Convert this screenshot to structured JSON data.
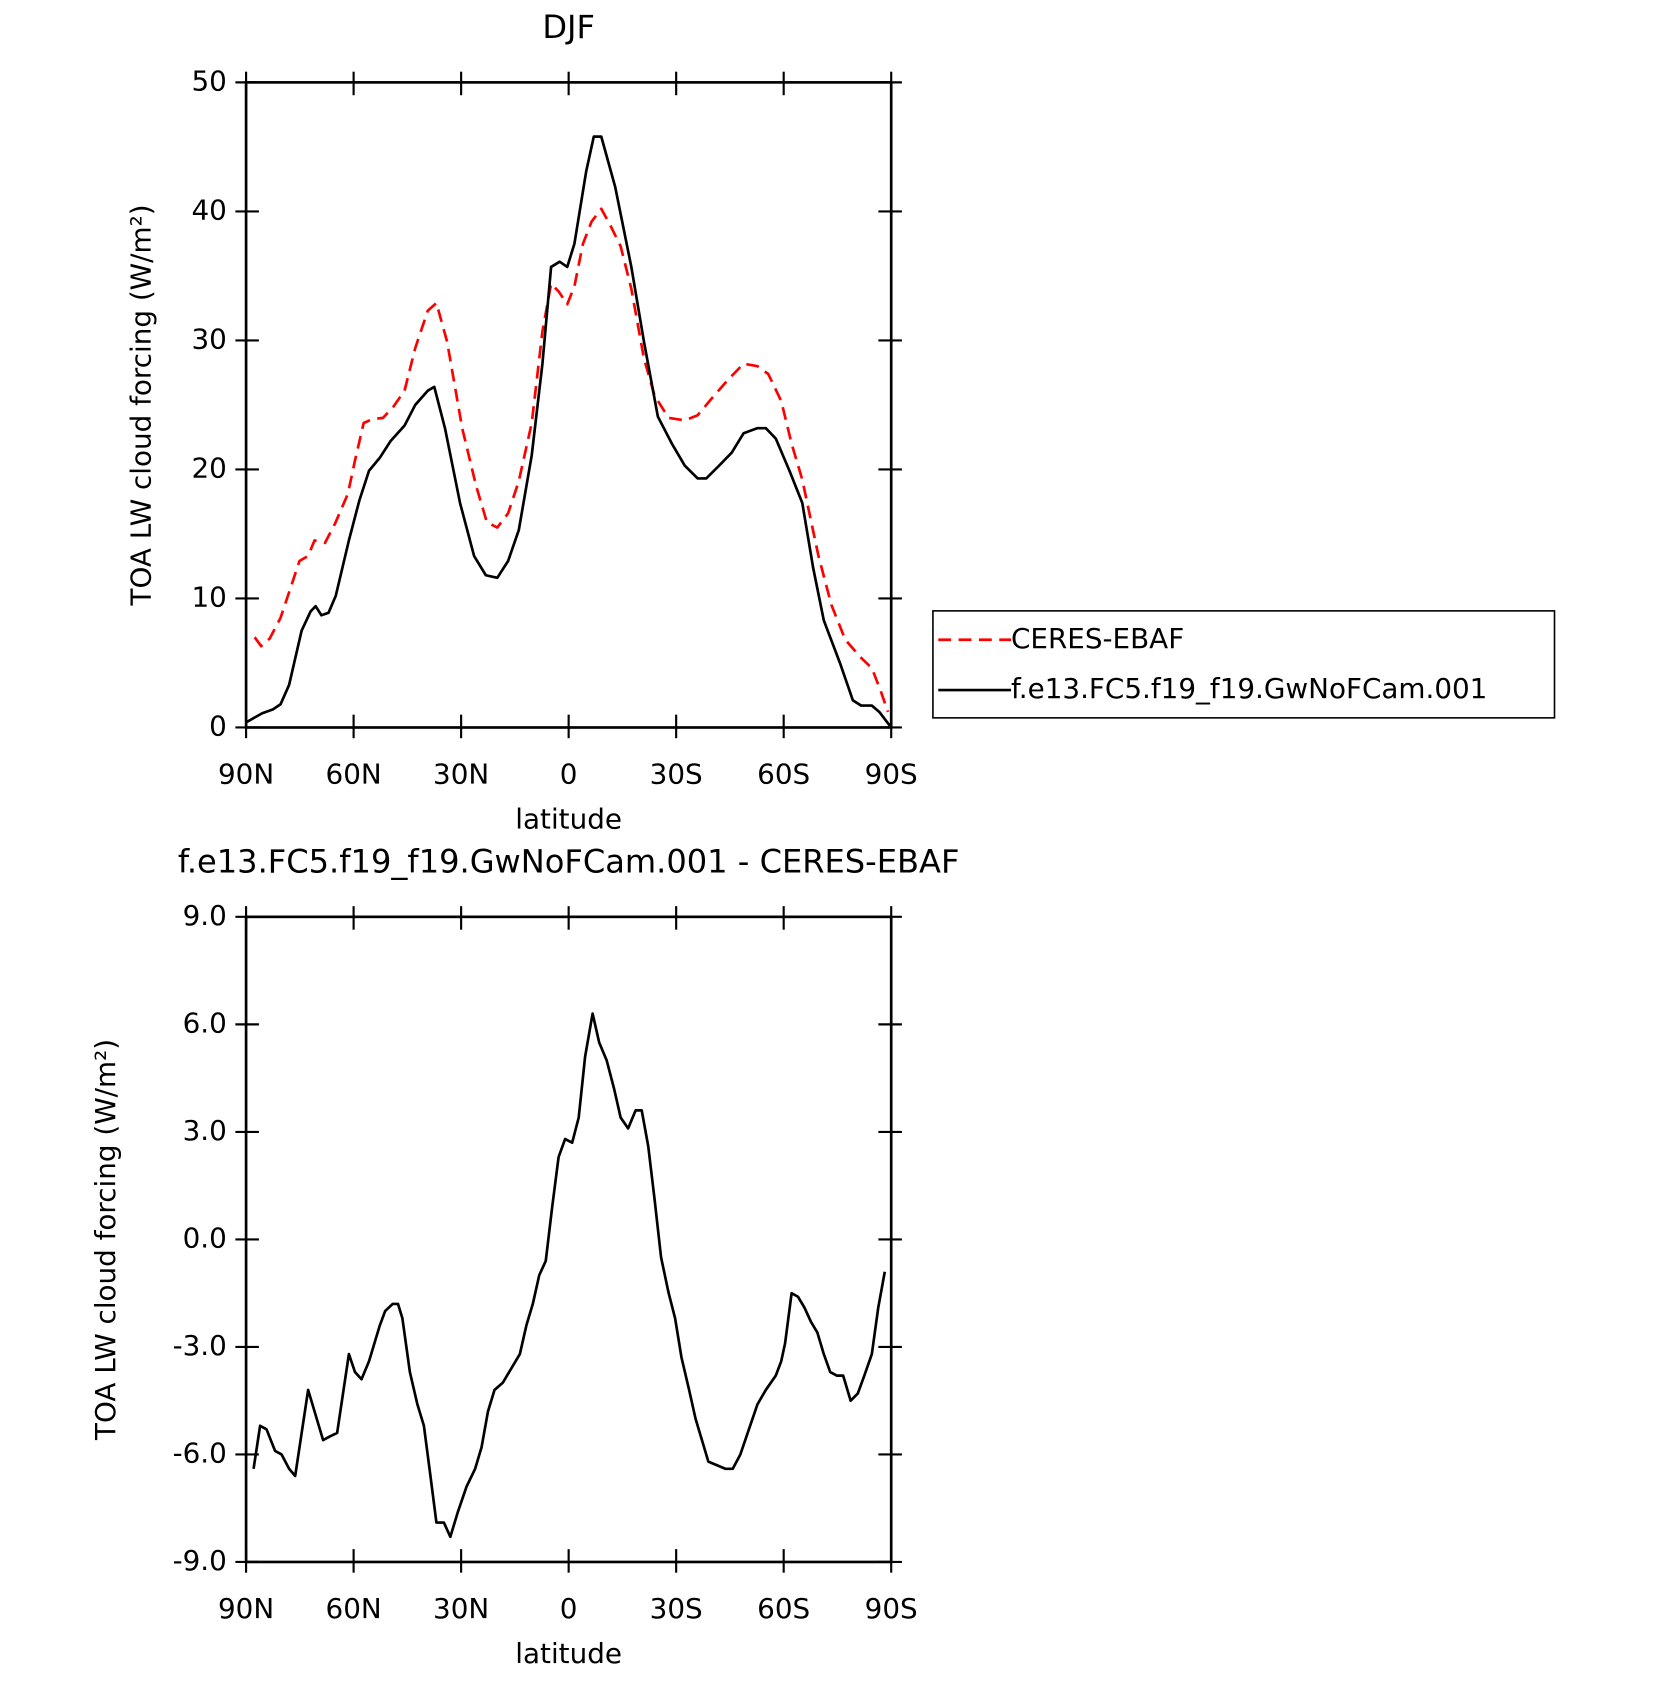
{
  "chart_data": [
    {
      "type": "line",
      "title": "DJF",
      "xlabel": "latitude",
      "ylabel": "TOA LW cloud forcing (W/m²)",
      "xlim": [
        90,
        -90
      ],
      "xticks": [
        {
          "value": 90,
          "label": "90N"
        },
        {
          "value": 60,
          "label": "60N"
        },
        {
          "value": 30,
          "label": "30N"
        },
        0,
        {
          "value": -30,
          "label": "30S"
        },
        {
          "value": -60,
          "label": "60S"
        },
        {
          "value": -90,
          "label": "90S"
        }
      ],
      "ylim": [
        0,
        50
      ],
      "yticks": [
        0,
        10,
        20,
        30,
        40,
        50
      ],
      "legend": "right",
      "series": [
        {
          "name": "CERES-EBAF",
          "color": "#ff0000",
          "line_style": "dashed",
          "x": [
            87.6,
            85.8,
            83.4,
            80.4,
            77.5,
            75.1,
            72.7,
            70.9,
            68,
            65.2,
            61.6,
            59.6,
            57.2,
            54.8,
            51.8,
            48.8,
            45.8,
            42.8,
            39.3,
            36.9,
            33.9,
            29.7,
            25.8,
            22.8,
            19.9,
            16.9,
            13.9,
            10.3,
            7.3,
            4.9,
            2.8,
            0.4,
            -1.6,
            -4,
            -6.4,
            -9.1,
            -11.5,
            -14.5,
            -17.5,
            -21,
            -24,
            -27.9,
            -32.4,
            -36,
            -39.9,
            -44.3,
            -48.8,
            -52.7,
            -55.7,
            -59.3,
            -62.2,
            -65.2,
            -69.7,
            -73.3,
            -77.2,
            -81.6,
            -84.6,
            -87,
            -89.1
          ],
          "values": [
            7,
            6.3,
            6.9,
            8.5,
            10.9,
            12.9,
            13.3,
            14.5,
            14.3,
            15.8,
            18.1,
            20.7,
            23.6,
            23.9,
            24,
            24.9,
            26.1,
            29.4,
            32.3,
            32.9,
            29.9,
            23.2,
            18.7,
            15.9,
            15.5,
            16.6,
            19.1,
            23.6,
            30.7,
            34.4,
            33.8,
            32.8,
            34.2,
            37.5,
            39.2,
            40.2,
            39,
            37.3,
            34,
            28.6,
            25.7,
            24,
            23.8,
            24.2,
            25.5,
            26.9,
            28.2,
            28,
            27.4,
            25.3,
            22,
            19.2,
            13.3,
            9.5,
            6.8,
            5.4,
            4.6,
            2.9,
            1.2
          ]
        },
        {
          "name": "f.e13.FC5.f19_f19.GwNoFCam.001",
          "color": "#000000",
          "line_style": "solid",
          "x": [
            90,
            85.5,
            82.5,
            80.4,
            78,
            74.5,
            72,
            70.6,
            69,
            67,
            65,
            61.3,
            58.4,
            55.7,
            52.7,
            49.7,
            45.8,
            42.8,
            39.3,
            37.5,
            34.5,
            30.3,
            26.4,
            23.1,
            19.9,
            16.9,
            13.9,
            10.3,
            7.3,
            4.9,
            2.5,
            0.4,
            -1.6,
            -4.9,
            -7,
            -9.1,
            -13,
            -17.5,
            -21,
            -24.9,
            -28.8,
            -32.4,
            -36,
            -38.4,
            -42,
            -45.5,
            -48.8,
            -52.7,
            -55,
            -57.8,
            -61.6,
            -65.2,
            -68.2,
            -71.2,
            -75.7,
            -79.3,
            -81.6,
            -84.6,
            -86.7,
            -90
          ],
          "values": [
            0.4,
            1.1,
            1.4,
            1.8,
            3.3,
            7.5,
            9,
            9.4,
            8.7,
            8.9,
            10.2,
            14.5,
            17.6,
            19.9,
            20.9,
            22.2,
            23.4,
            25,
            26.1,
            26.4,
            23.2,
            17.4,
            13.3,
            11.8,
            11.6,
            12.9,
            15.3,
            21.1,
            28.2,
            35.7,
            36.1,
            35.7,
            37.5,
            43.1,
            45.8,
            45.8,
            41.9,
            35.7,
            29.9,
            24.1,
            22,
            20.3,
            19.3,
            19.3,
            20.3,
            21.3,
            22.8,
            23.2,
            23.2,
            22.4,
            19.9,
            17.4,
            12.4,
            8.3,
            5,
            2.1,
            1.7,
            1.7,
            1.2,
            0
          ]
        }
      ]
    },
    {
      "type": "line",
      "title": "f.e13.FC5.f19_f19.GwNoFCam.001 - CERES-EBAF",
      "xlabel": "latitude",
      "ylabel": "TOA LW cloud forcing (W/m²)",
      "xlim": [
        90,
        -90
      ],
      "xticks": [
        {
          "value": 90,
          "label": "90N"
        },
        {
          "value": 60,
          "label": "60N"
        },
        {
          "value": 30,
          "label": "30N"
        },
        0,
        {
          "value": -30,
          "label": "30S"
        },
        {
          "value": -60,
          "label": "60S"
        },
        {
          "value": -90,
          "label": "90S"
        }
      ],
      "ylim": [
        -9,
        9
      ],
      "yticks": [
        {
          "value": -9,
          "label": "-9.0"
        },
        {
          "value": -6,
          "label": "-6.0"
        },
        {
          "value": -3,
          "label": "-3.0"
        },
        {
          "value": 0,
          "label": "0.0"
        },
        {
          "value": 3,
          "label": "3.0"
        },
        {
          "value": 6,
          "label": "6.0"
        },
        {
          "value": 9,
          "label": "9.0"
        }
      ],
      "color": "#000000",
      "line_style": "solid",
      "x": [
        87.9,
        86.1,
        84.3,
        81.9,
        80.1,
        78,
        76.3,
        72.7,
        70.3,
        68.5,
        66.7,
        64.6,
        61.3,
        59.6,
        57.8,
        55.7,
        52.7,
        51.2,
        49.1,
        47.6,
        46.4,
        44.3,
        42.2,
        40.4,
        38.7,
        36.9,
        34.8,
        33,
        30.9,
        28.5,
        26.1,
        24.3,
        22.5,
        20.7,
        18.4,
        16,
        13.6,
        11.8,
        10,
        8.2,
        6.4,
        4.6,
        2.8,
        1,
        -1,
        -2.8,
        -4.6,
        -6.7,
        -8.5,
        -10.6,
        -12.7,
        -14.5,
        -16.6,
        -18.7,
        -20.4,
        -22.2,
        -24,
        -25.8,
        -27.9,
        -29.7,
        -31.5,
        -33.6,
        -35.4,
        -37.2,
        -39,
        -41.3,
        -43.7,
        -45.8,
        -47.9,
        -50.3,
        -52.7,
        -55,
        -57.8,
        -59.3,
        -60.4,
        -62.2,
        -64,
        -65.8,
        -67.6,
        -69.4,
        -71.2,
        -73,
        -74.8,
        -76.6,
        -78.7,
        -80.7,
        -82.5,
        -84.6,
        -86.4,
        -88.2
      ],
      "values": [
        -6.4,
        -5.2,
        -5.3,
        -5.9,
        -6,
        -6.4,
        -6.6,
        -4.2,
        -5,
        -5.6,
        -5.5,
        -5.4,
        -3.2,
        -3.7,
        -3.9,
        -3.4,
        -2.4,
        -2,
        -1.8,
        -1.8,
        -2.2,
        -3.7,
        -4.6,
        -5.2,
        -6.5,
        -7.9,
        -7.9,
        -8.3,
        -7.6,
        -6.9,
        -6.4,
        -5.8,
        -4.8,
        -4.2,
        -4,
        -3.6,
        -3.2,
        -2.4,
        -1.8,
        -1,
        -0.6,
        0.9,
        2.3,
        2.8,
        2.7,
        3.4,
        5.1,
        6.3,
        5.5,
        5,
        4.2,
        3.4,
        3.1,
        3.6,
        3.6,
        2.6,
        1.1,
        -0.5,
        -1.5,
        -2.2,
        -3.3,
        -4.2,
        -5,
        -5.6,
        -6.2,
        -6.3,
        -6.4,
        -6.4,
        -6,
        -5.3,
        -4.6,
        -4.2,
        -3.8,
        -3.4,
        -2.9,
        -1.5,
        -1.6,
        -1.9,
        -2.3,
        -2.6,
        -3.2,
        -3.7,
        -3.8,
        -3.8,
        -4.5,
        -4.3,
        -3.8,
        -3.2,
        -1.9,
        -0.9
      ]
    }
  ]
}
